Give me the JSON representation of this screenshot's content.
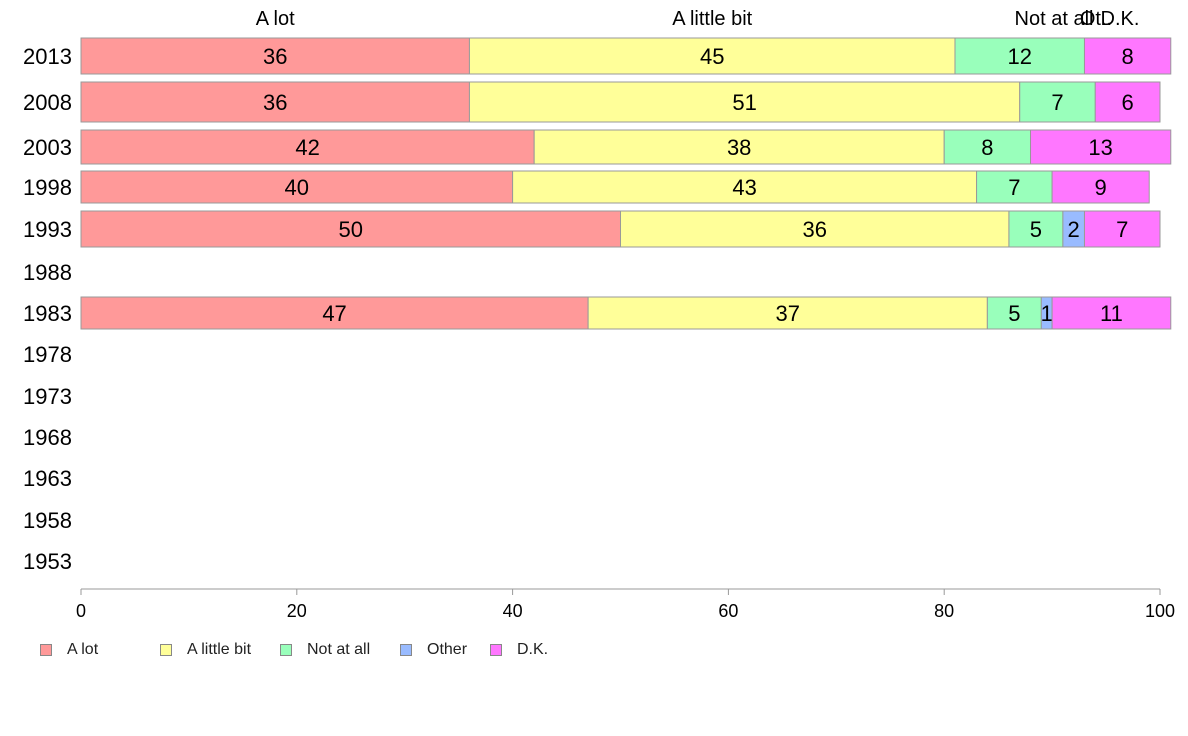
{
  "chart_data": {
    "type": "bar",
    "orientation": "horizontal",
    "stacked": true,
    "categories": [
      "2013",
      "2008",
      "2003",
      "1998",
      "1993",
      "1988",
      "1983",
      "1978",
      "1973",
      "1968",
      "1963",
      "1958",
      "1953"
    ],
    "series": [
      {
        "name": "A lot",
        "color": "#ff9999",
        "values": [
          36,
          36,
          42,
          40,
          50,
          null,
          47,
          null,
          null,
          null,
          null,
          null,
          null
        ]
      },
      {
        "name": "A little bit",
        "color": "#ffff99",
        "values": [
          45,
          51,
          38,
          43,
          36,
          null,
          37,
          null,
          null,
          null,
          null,
          null,
          null
        ]
      },
      {
        "name": "Not at all",
        "color": "#99ffbb",
        "values": [
          12,
          7,
          8,
          7,
          5,
          null,
          5,
          null,
          null,
          null,
          null,
          null,
          null
        ]
      },
      {
        "name": "Other",
        "color": "#99bbff",
        "values": [
          0,
          0,
          0,
          0,
          2,
          null,
          1,
          null,
          null,
          null,
          null,
          null,
          null
        ]
      },
      {
        "name": "D.K.",
        "color": "#ff77ff",
        "values": [
          8,
          6,
          13,
          9,
          7,
          null,
          11,
          null,
          null,
          null,
          null,
          null,
          null
        ]
      }
    ],
    "top_labels": [
      "A lot",
      "A little bit",
      "Not at all",
      "Ot..",
      "D.K."
    ],
    "xlim": [
      0,
      100
    ],
    "x_ticks": [
      0,
      20,
      40,
      60,
      80,
      100
    ],
    "grid": false,
    "legend_position": "bottom-left"
  }
}
